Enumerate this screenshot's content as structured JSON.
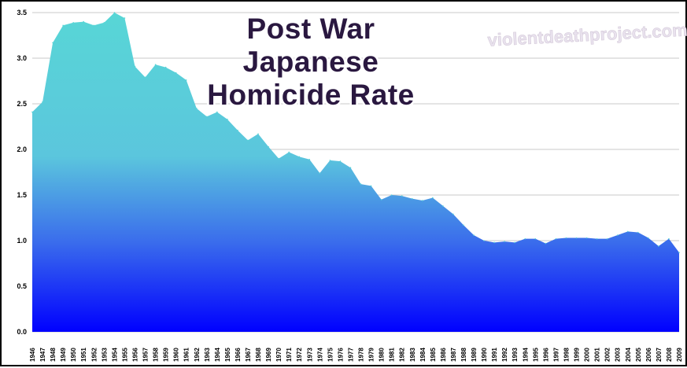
{
  "chart_data": {
    "type": "area",
    "title_lines": [
      "Post War",
      "Japanese",
      "Homicide Rate"
    ],
    "watermark": "violentdeathproject.com",
    "xlabel": "",
    "ylabel": "",
    "ylim": [
      0,
      3.5
    ],
    "yticks": [
      "0.0",
      "0.5",
      "1.0",
      "1.5",
      "2.0",
      "2.5",
      "3.0",
      "3.5"
    ],
    "grid": true,
    "colors": {
      "top": "#58d6d6",
      "upper_mid": "#5bc6dd",
      "lower_mid": "#3a6cec",
      "bottom": "#0000ff"
    },
    "x": [
      1946,
      1947,
      1948,
      1949,
      1950,
      1951,
      1952,
      1953,
      1954,
      1955,
      1956,
      1957,
      1958,
      1959,
      1960,
      1961,
      1962,
      1963,
      1964,
      1965,
      1966,
      1967,
      1968,
      1969,
      1970,
      1971,
      1972,
      1973,
      1974,
      1975,
      1976,
      1977,
      1978,
      1979,
      1980,
      1981,
      1982,
      1983,
      1984,
      1985,
      1986,
      1987,
      1988,
      1989,
      1990,
      1991,
      1992,
      1993,
      1994,
      1995,
      1996,
      1997,
      1998,
      1999,
      2000,
      2001,
      2002,
      2003,
      2004,
      2005,
      2006,
      2007,
      2008,
      2009
    ],
    "values": [
      2.41,
      2.52,
      3.17,
      3.36,
      3.39,
      3.4,
      3.36,
      3.39,
      3.5,
      3.44,
      2.91,
      2.79,
      2.93,
      2.9,
      2.84,
      2.76,
      2.45,
      2.36,
      2.41,
      2.33,
      2.21,
      2.1,
      2.17,
      2.03,
      1.9,
      1.97,
      1.92,
      1.89,
      1.74,
      1.88,
      1.87,
      1.8,
      1.62,
      1.6,
      1.45,
      1.5,
      1.49,
      1.46,
      1.44,
      1.47,
      1.38,
      1.29,
      1.17,
      1.06,
      1.0,
      0.98,
      0.99,
      0.98,
      1.02,
      1.02,
      0.97,
      1.02,
      1.03,
      1.03,
      1.03,
      1.02,
      1.02,
      1.06,
      1.1,
      1.09,
      1.03,
      0.94,
      1.02,
      0.87
    ]
  }
}
